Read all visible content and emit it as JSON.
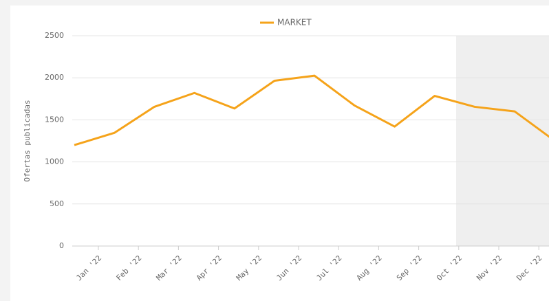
{
  "chart_data": {
    "type": "line",
    "y_label": "Ofertas publicadas",
    "categories": [
      "Jan '22",
      "Feb '22",
      "Mar '22",
      "Apr '22",
      "May '22",
      "Jun '22",
      "Jul '22",
      "Aug '22",
      "Sep '22",
      "Oct '22",
      "Nov '22",
      "Dec '22",
      null
    ],
    "series": [
      {
        "name": "MARKET",
        "color": "#f5a31a",
        "values": [
          1200,
          1345,
          1655,
          1820,
          1635,
          1965,
          2025,
          1670,
          1420,
          1785,
          1655,
          1600,
          1250
        ]
      }
    ],
    "ylim": [
      0,
      2500
    ],
    "yticks": [
      0,
      500,
      1000,
      1500,
      2000,
      2500
    ],
    "grid": true
  }
}
